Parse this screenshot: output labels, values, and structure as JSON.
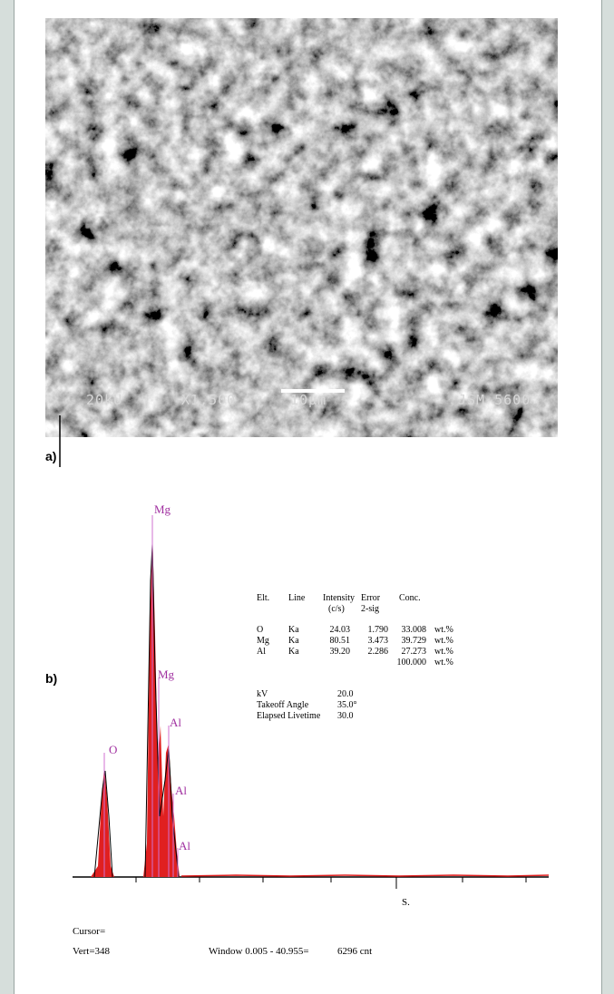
{
  "panel_a": {
    "label": "a)",
    "overlay": {
      "voltage": "20kU",
      "magnification": "X1,500",
      "scale": "10µm",
      "instrument": "JSM 5600"
    }
  },
  "panel_b": {
    "label": "b)",
    "peak_labels": [
      "Mg",
      "Mg",
      "Al",
      "O",
      "Al",
      "Al"
    ],
    "table": {
      "header": [
        "Elt.",
        "Line",
        "Intensity",
        "Error",
        "Conc."
      ],
      "subheader": [
        "(c/s)",
        "2-sig"
      ],
      "rows": [
        [
          "O",
          "Ka",
          "24.03",
          "1.790",
          "33.008",
          "wt.%"
        ],
        [
          "Mg",
          "Ka",
          "80.51",
          "3.473",
          "39.729",
          "wt.%"
        ],
        [
          "Al",
          "Ka",
          "39.20",
          "2.286",
          "27.273",
          "wt.%"
        ]
      ],
      "total": [
        "100.000",
        "wt.%"
      ]
    },
    "settings": [
      [
        "kV",
        "20.0"
      ],
      [
        "Takeoff Angle",
        "35.0°"
      ],
      [
        "Elapsed Livetime",
        "30.0"
      ]
    ],
    "axis_label": "S.",
    "footer": {
      "cursor": "Cursor=",
      "vert": "Vert=348",
      "window": "Window 0.005 - 40.955=",
      "count": "6296 cnt"
    }
  }
}
